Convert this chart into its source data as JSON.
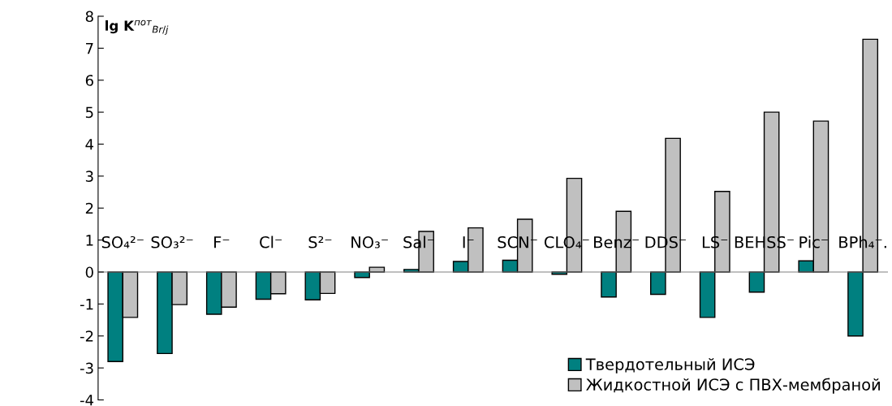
{
  "chart_data": {
    "type": "bar",
    "ylabel": "lg K$^{пот}$$_{Br/j}$",
    "categories": [
      "SO₄²⁻",
      "SO₃²⁻",
      "F⁻",
      "Cl⁻",
      "S²⁻",
      "NO₃⁻",
      "Sal⁻",
      "I⁻",
      "SCN⁻",
      "CLO₄⁻",
      "Benz⁻",
      "DDS⁻",
      "LS⁻",
      "BEHSS⁻",
      "Pic⁻",
      "BPh₄⁻."
    ],
    "series": [
      {
        "name": "Твердотельный ИСЭ",
        "color": "#008080",
        "values": [
          -2.8,
          -2.55,
          -1.32,
          -0.85,
          -0.87,
          -0.17,
          0.08,
          0.33,
          0.37,
          -0.07,
          -0.78,
          -0.7,
          -1.42,
          -0.63,
          0.35,
          -2.0
        ]
      },
      {
        "name": "Жидкостной ИСЭ с ПВХ-мембраной",
        "color": "#c0c0c0",
        "values": [
          -1.42,
          -1.02,
          -1.1,
          -0.68,
          -0.67,
          0.15,
          1.27,
          1.38,
          1.65,
          2.93,
          1.9,
          4.18,
          2.52,
          5.0,
          4.72,
          7.28
        ]
      }
    ],
    "ylim": [
      -4,
      8
    ],
    "yticks": [
      -4,
      -3,
      -2,
      -1,
      0,
      1,
      2,
      3,
      4,
      5,
      6,
      7,
      8
    ],
    "grid": false,
    "legend": "bottom right"
  }
}
